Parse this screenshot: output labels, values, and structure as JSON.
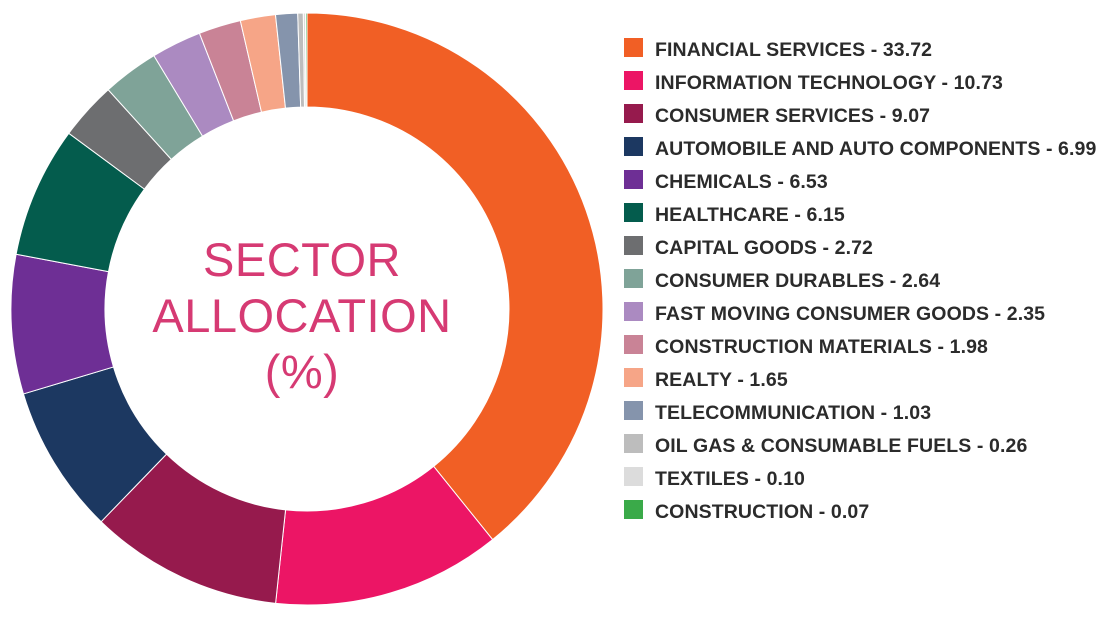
{
  "chart_data": {
    "type": "pie",
    "title": "SECTOR ALLOCATION (%)",
    "title_lines": [
      "SECTOR",
      "ALLOCATION",
      "(%)"
    ],
    "slices": [
      {
        "label": "FINANCIAL SERVICES",
        "value": 33.72,
        "color": "#f15f25",
        "legend_text": "FINANCIAL SERVICES - 33.72"
      },
      {
        "label": "INFORMATION TECHNOLOGY",
        "value": 10.73,
        "color": "#ec1565",
        "legend_text": "INFORMATION TECHNOLOGY - 10.73"
      },
      {
        "label": "CONSUMER SERVICES",
        "value": 9.07,
        "color": "#961a4d",
        "legend_text": "CONSUMER SERVICES - 9.07"
      },
      {
        "label": "AUTOMOBILE AND AUTO COMPONENTS",
        "value": 6.99,
        "color": "#1c3861",
        "legend_text": "AUTOMOBILE AND AUTO COMPONENTS - 6.99"
      },
      {
        "label": "CHEMICALS",
        "value": 6.53,
        "color": "#6e2f95",
        "legend_text": "CHEMICALS - 6.53"
      },
      {
        "label": "HEALTHCARE",
        "value": 6.15,
        "color": "#045c4d",
        "legend_text": "HEALTHCARE - 6.15"
      },
      {
        "label": "CAPITAL GOODS",
        "value": 2.72,
        "color": "#6d6e70",
        "legend_text": "CAPITAL GOODS - 2.72"
      },
      {
        "label": "CONSUMER DURABLES",
        "value": 2.64,
        "color": "#7fa398",
        "legend_text": "CONSUMER DURABLES - 2.64"
      },
      {
        "label": "FAST MOVING CONSUMER GOODS",
        "value": 2.35,
        "color": "#ab8ac1",
        "legend_text": "FAST MOVING CONSUMER GOODS - 2.35"
      },
      {
        "label": "CONSTRUCTION MATERIALS",
        "value": 1.98,
        "color": "#c98396",
        "legend_text": "CONSTRUCTION MATERIALS - 1.98"
      },
      {
        "label": "REALTY",
        "value": 1.65,
        "color": "#f6a587",
        "legend_text": "REALTY - 1.65"
      },
      {
        "label": "TELECOMMUNICATION",
        "value": 1.03,
        "color": "#8594ac",
        "legend_text": "TELECOMMUNICATION - 1.03"
      },
      {
        "label": "OIL GAS & CONSUMABLE FUELS",
        "value": 0.26,
        "color": "#bdbdbd",
        "legend_text": "OIL GAS & CONSUMABLE FUELS - 0.26"
      },
      {
        "label": "TEXTILES",
        "value": 0.1,
        "color": "#dcdcdc",
        "legend_text": "TEXTILES - 0.10"
      },
      {
        "label": "CONSTRUCTION",
        "value": 0.07,
        "color": "#3aaa49",
        "legend_text": "CONSTRUCTION - 0.07"
      }
    ],
    "legend_position": "right",
    "title_color": "#d63a73"
  }
}
